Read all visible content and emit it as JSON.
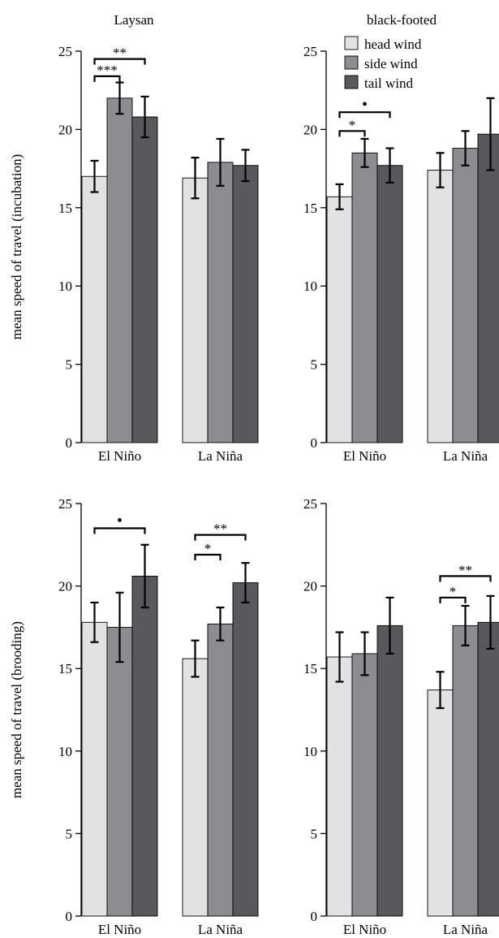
{
  "colors": {
    "head_wind": "#e2e2e4",
    "side_wind": "#8c8c91",
    "tail_wind": "#58585d",
    "bar_stroke": "#000000",
    "axis": "#000000"
  },
  "legend": {
    "items": [
      "head wind",
      "side wind",
      "tail wind"
    ]
  },
  "chart_data": [
    {
      "type": "bar",
      "title": "Laysan",
      "ylabel": "mean speed of travel (incubation)",
      "ylim": [
        0,
        25
      ],
      "yticks": [
        0,
        5,
        10,
        15,
        20,
        25
      ],
      "categories": [
        "El Niño",
        "La Niña"
      ],
      "series": [
        {
          "name": "head wind",
          "values": [
            17.0,
            16.9
          ],
          "errors": [
            1.0,
            1.3
          ]
        },
        {
          "name": "side wind",
          "values": [
            22.0,
            17.9
          ],
          "errors": [
            1.0,
            1.5
          ]
        },
        {
          "name": "tail wind",
          "values": [
            20.8,
            17.7
          ],
          "errors": [
            1.3,
            1.0
          ]
        }
      ],
      "annotations": [
        {
          "text": "***",
          "group": 0,
          "from": 0,
          "to": 1,
          "level": 23.4
        },
        {
          "text": "**",
          "group": 0,
          "from": 0,
          "to": 2,
          "level": 24.5
        }
      ]
    },
    {
      "type": "bar",
      "title": "black-footed",
      "ylabel": "",
      "ylim": [
        0,
        25
      ],
      "yticks": [
        0,
        5,
        10,
        15,
        20,
        25
      ],
      "categories": [
        "El Niño",
        "La Niña"
      ],
      "series": [
        {
          "name": "head wind",
          "values": [
            15.7,
            17.4
          ],
          "errors": [
            0.8,
            1.1
          ]
        },
        {
          "name": "side wind",
          "values": [
            18.5,
            18.8
          ],
          "errors": [
            0.9,
            1.1
          ]
        },
        {
          "name": "tail wind",
          "values": [
            17.7,
            19.7
          ],
          "errors": [
            1.1,
            2.3
          ]
        }
      ],
      "annotations": [
        {
          "text": "*",
          "group": 0,
          "from": 0,
          "to": 1,
          "level": 19.9
        },
        {
          "text": "•",
          "group": 0,
          "from": 0,
          "to": 2,
          "level": 21.1
        }
      ]
    },
    {
      "type": "bar",
      "title": "",
      "ylabel": "mean speed of travel (brooding)",
      "ylim": [
        0,
        25
      ],
      "yticks": [
        0,
        5,
        10,
        15,
        20,
        25
      ],
      "categories": [
        "El Niño",
        "La Niña"
      ],
      "series": [
        {
          "name": "head wind",
          "values": [
            17.8,
            15.6
          ],
          "errors": [
            1.2,
            1.1
          ]
        },
        {
          "name": "side wind",
          "values": [
            17.5,
            17.7
          ],
          "errors": [
            2.1,
            1.0
          ]
        },
        {
          "name": "tail wind",
          "values": [
            20.6,
            20.2
          ],
          "errors": [
            1.9,
            1.2
          ]
        }
      ],
      "annotations": [
        {
          "text": "•",
          "group": 0,
          "from": 0,
          "to": 2,
          "level": 23.5
        },
        {
          "text": "*",
          "group": 1,
          "from": 0,
          "to": 1,
          "level": 21.9
        },
        {
          "text": "**",
          "group": 1,
          "from": 0,
          "to": 2,
          "level": 23.1
        }
      ]
    },
    {
      "type": "bar",
      "title": "",
      "ylabel": "",
      "ylim": [
        0,
        25
      ],
      "yticks": [
        0,
        5,
        10,
        15,
        20,
        25
      ],
      "categories": [
        "El Niño",
        "La Niña"
      ],
      "series": [
        {
          "name": "head wind",
          "values": [
            15.7,
            13.7
          ],
          "errors": [
            1.5,
            1.1
          ]
        },
        {
          "name": "side wind",
          "values": [
            15.9,
            17.6
          ],
          "errors": [
            1.3,
            1.2
          ]
        },
        {
          "name": "tail wind",
          "values": [
            17.6,
            17.8
          ],
          "errors": [
            1.7,
            1.6
          ]
        }
      ],
      "annotations": [
        {
          "text": "*",
          "group": 1,
          "from": 0,
          "to": 1,
          "level": 19.3
        },
        {
          "text": "**",
          "group": 1,
          "from": 0,
          "to": 2,
          "level": 20.6
        }
      ]
    }
  ]
}
